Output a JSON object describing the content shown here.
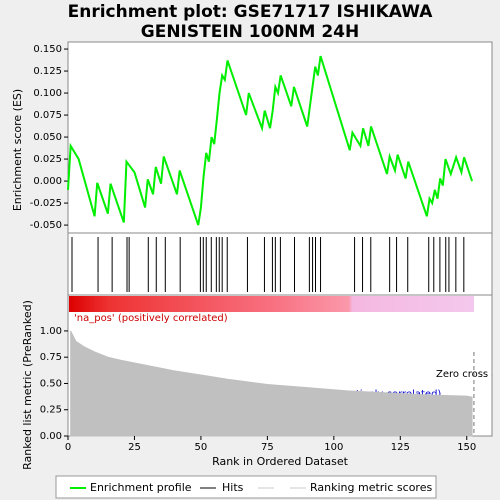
{
  "title": "Enrichment plot: GSE71717 ISHIKAWA GENISTEIN 100NM 24H",
  "legend": [
    "Enrichment profile",
    "Hits",
    "Ranking metric scores"
  ],
  "chart_data": [
    {
      "type": "line",
      "name": "Enrichment profile",
      "color": "#00ee00",
      "ylabel": "Enrichment score (ES)",
      "xlim": [
        0,
        159.5
      ],
      "ylim": [
        -0.059,
        0.158
      ],
      "yticks": [
        {
          "value": 0.15,
          "label": "0.150"
        },
        {
          "value": 0.125,
          "label": "0.125"
        },
        {
          "value": 0.1,
          "label": "0.100"
        },
        {
          "value": 0.075,
          "label": "0.075"
        },
        {
          "value": 0.05,
          "label": "0.050"
        },
        {
          "value": 0.025,
          "label": "0.025"
        },
        {
          "value": 0,
          "label": "0.000"
        },
        {
          "value": -0.025,
          "label": "-0.025"
        },
        {
          "value": -0.05,
          "label": "-0.050"
        }
      ],
      "x": [
        0,
        1,
        4,
        10,
        11,
        15,
        16,
        21,
        22,
        25,
        29,
        30,
        32,
        33,
        35,
        36,
        41,
        42,
        49,
        50,
        51,
        52,
        53,
        54,
        55,
        56,
        57,
        58,
        59,
        60,
        67,
        68,
        73,
        74,
        76,
        77,
        78,
        79,
        80,
        84,
        85,
        90,
        91,
        93,
        94,
        95,
        106,
        107,
        110,
        111,
        113,
        114,
        120,
        121,
        123,
        124,
        127,
        128,
        135,
        136,
        137,
        138,
        139,
        140,
        141,
        142,
        144,
        146,
        148,
        149,
        152
      ],
      "y": [
        -0.01,
        0.04,
        0.025,
        -0.04,
        -0.002,
        -0.037,
        -0.003,
        -0.047,
        0.022,
        0.01,
        -0.03,
        0.002,
        -0.015,
        0.016,
        -0.003,
        0.028,
        -0.015,
        0.012,
        -0.05,
        -0.03,
        0.005,
        0.032,
        0.022,
        0.05,
        0.042,
        0.07,
        0.1,
        0.12,
        0.115,
        0.137,
        0.075,
        0.1,
        0.06,
        0.08,
        0.06,
        0.08,
        0.107,
        0.1,
        0.12,
        0.085,
        0.107,
        0.062,
        0.085,
        0.13,
        0.12,
        0.142,
        0.035,
        0.055,
        0.04,
        0.06,
        0.04,
        0.062,
        0.008,
        0.028,
        0.012,
        0.03,
        0.003,
        0.022,
        -0.04,
        -0.02,
        -0.025,
        -0.01,
        -0.02,
        0.003,
        -0.005,
        0.025,
        0.008,
        0.027,
        0.01,
        0.027,
        0.0
      ]
    },
    {
      "type": "rug",
      "name": "Hits",
      "color": "#000000",
      "xlim": [
        0,
        159.5
      ],
      "x": [
        1.5,
        11.3,
        16.6,
        22.2,
        23,
        30.2,
        33.2,
        36.6,
        42.2,
        49.8,
        50.9,
        52,
        53.9,
        55.8,
        56.9,
        58,
        59.9,
        67.5,
        73.9,
        76.9,
        78,
        79.9,
        85.2,
        90.8,
        92,
        93.1,
        95,
        107.8,
        110.8,
        113.9,
        121,
        123.6,
        127.8,
        135.7,
        137.6,
        139.9,
        142.1,
        143.3,
        145.9,
        148.9
      ]
    },
    {
      "type": "area",
      "name": "Ranking metric scores",
      "color": "#c0c0c0",
      "ylabel": "Ranked list metric (PreRanked)",
      "xlabel": "Rank in Ordered Dataset",
      "xlim": [
        0,
        159.5
      ],
      "ylim": [
        0,
        1.18
      ],
      "xticks": [
        0,
        25,
        50,
        75,
        100,
        125,
        150
      ],
      "yticks": [
        {
          "value": 0,
          "label": "0.00"
        },
        {
          "value": 0.25,
          "label": "0.25"
        },
        {
          "value": 0.5,
          "label": "0.50"
        },
        {
          "value": 0.75,
          "label": "0.75"
        },
        {
          "value": 1,
          "label": "1.00"
        }
      ],
      "x": [
        1,
        3,
        6,
        10,
        15,
        20,
        30,
        40,
        50,
        60,
        75,
        90,
        105,
        120,
        135,
        150,
        152
      ],
      "y": [
        1.0,
        0.9,
        0.85,
        0.8,
        0.75,
        0.72,
        0.67,
        0.62,
        0.58,
        0.54,
        0.49,
        0.46,
        0.43,
        0.41,
        0.39,
        0.38,
        0.37
      ],
      "zero_cross": 152.7,
      "annotations": [
        "'na_pos' (positively correlated)",
        "'na_neg' (negatively correlated)",
        "Zero cross at"
      ]
    }
  ]
}
